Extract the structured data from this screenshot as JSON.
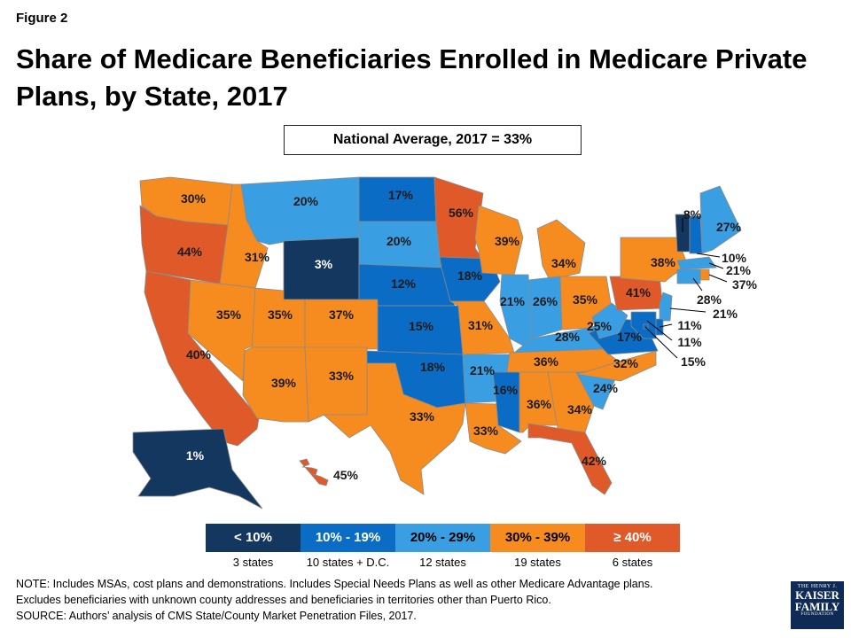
{
  "figure_label": "Figure 2",
  "title": "Share of Medicare Beneficiaries Enrolled in Medicare Private Plans, by State, 2017",
  "national_average": "National Average, 2017 = 33%",
  "colors": {
    "lt10": "#13375f",
    "b10_19": "#0a6cc4",
    "b20_29": "#3a9ee3",
    "b30_39": "#f68c1f",
    "ge40": "#df5a28"
  },
  "legend": [
    {
      "label": "< 10%",
      "count": "3 states",
      "color": "#13375f"
    },
    {
      "label": "10% - 19%",
      "count": "10 states + D.C.",
      "color": "#0a6cc4"
    },
    {
      "label": "20% - 29%",
      "count": "12 states",
      "color": "#3a9ee3"
    },
    {
      "label": "30% - 39%",
      "count": "19 states",
      "color": "#f68c1f"
    },
    {
      "label": "≥ 40%",
      "count": "6 states",
      "color": "#df5a28"
    }
  ],
  "notes": [
    "NOTE: Includes MSAs, cost plans and demonstrations.  Includes Special Needs Plans as well as other Medicare Advantage plans.",
    "Excludes beneficiaries with unknown county addresses and beneficiaries in territories other than Puerto Rico.",
    "SOURCE:  Authors’ analysis of CMS State/County Market Penetration Files, 2017."
  ],
  "logo": {
    "line1": "THE HENRY J.",
    "line2a": "KAISER",
    "line2b": "FAMILY",
    "line3": "FOUNDATION"
  },
  "states": [
    {
      "id": "WA",
      "value": "30%"
    },
    {
      "id": "OR",
      "value": "44%"
    },
    {
      "id": "CA",
      "value": "40%"
    },
    {
      "id": "ID",
      "value": "31%"
    },
    {
      "id": "NV",
      "value": "35%"
    },
    {
      "id": "MT",
      "value": "20%"
    },
    {
      "id": "WY",
      "value": "3%"
    },
    {
      "id": "UT",
      "value": "35%"
    },
    {
      "id": "CO",
      "value": "37%"
    },
    {
      "id": "AZ",
      "value": "39%"
    },
    {
      "id": "NM",
      "value": "33%"
    },
    {
      "id": "ND",
      "value": "17%"
    },
    {
      "id": "SD",
      "value": "20%"
    },
    {
      "id": "NE",
      "value": "12%"
    },
    {
      "id": "KS",
      "value": "15%"
    },
    {
      "id": "OK",
      "value": "18%"
    },
    {
      "id": "TX",
      "value": "33%"
    },
    {
      "id": "MN",
      "value": "56%"
    },
    {
      "id": "IA",
      "value": "18%"
    },
    {
      "id": "MO",
      "value": "31%"
    },
    {
      "id": "AR",
      "value": "21%"
    },
    {
      "id": "LA",
      "value": "33%"
    },
    {
      "id": "WI",
      "value": "39%"
    },
    {
      "id": "IL",
      "value": "21%"
    },
    {
      "id": "MI",
      "value": "34%"
    },
    {
      "id": "IN",
      "value": "26%"
    },
    {
      "id": "OH",
      "value": "35%"
    },
    {
      "id": "KY",
      "value": "28%"
    },
    {
      "id": "TN",
      "value": "36%"
    },
    {
      "id": "MS",
      "value": "16%"
    },
    {
      "id": "AL",
      "value": "36%"
    },
    {
      "id": "GA",
      "value": "34%"
    },
    {
      "id": "FL",
      "value": "42%"
    },
    {
      "id": "SC",
      "value": "24%"
    },
    {
      "id": "NC",
      "value": "32%"
    },
    {
      "id": "VA",
      "value": "17%"
    },
    {
      "id": "WV",
      "value": "25%"
    },
    {
      "id": "PA",
      "value": "41%"
    },
    {
      "id": "NY",
      "value": "38%"
    },
    {
      "id": "VT",
      "value": "8%"
    },
    {
      "id": "NH",
      "value": "10%"
    },
    {
      "id": "ME",
      "value": "27%"
    },
    {
      "id": "MA",
      "value": "21%"
    },
    {
      "id": "RI",
      "value": "37%"
    },
    {
      "id": "CT",
      "value": "28%"
    },
    {
      "id": "NJ",
      "value": "21%"
    },
    {
      "id": "DE",
      "value": "11%"
    },
    {
      "id": "MD",
      "value": "11%"
    },
    {
      "id": "DC",
      "value": "15%"
    },
    {
      "id": "AK",
      "value": "1%"
    },
    {
      "id": "HI",
      "value": "45%"
    }
  ]
}
